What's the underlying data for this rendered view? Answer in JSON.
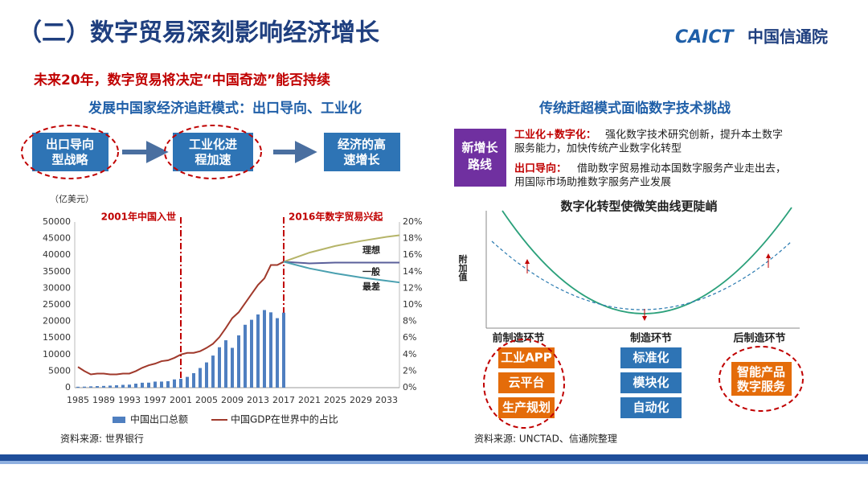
{
  "header": {
    "title": "（二）数字贸易深刻影响经济增长",
    "logo_en": "CAICT",
    "logo_cn": "中国信通院"
  },
  "headline": "未来20年，数字贸易将决定“中国奇迹”能否持续",
  "left": {
    "heading": "发展中国家经济追赶模式：出口导向、工业化",
    "flow": [
      [
        "出口导向",
        "型战略"
      ],
      [
        "工业化进",
        "程加速"
      ],
      [
        "经济的高",
        "速增长"
      ]
    ],
    "source": "资料来源: 世界银行"
  },
  "chart_data": {
    "type": "combo",
    "y_label": "（亿美元）",
    "x": [
      1985,
      1986,
      1987,
      1988,
      1989,
      1990,
      1991,
      1992,
      1993,
      1994,
      1995,
      1996,
      1997,
      1998,
      1999,
      2000,
      2001,
      2002,
      2003,
      2004,
      2005,
      2006,
      2007,
      2008,
      2009,
      2010,
      2011,
      2012,
      2013,
      2014,
      2015,
      2016,
      2017
    ],
    "xlim": [
      1984.5,
      2035
    ],
    "xticks": [
      1985,
      1989,
      1993,
      1997,
      2001,
      2005,
      2009,
      2013,
      2017,
      2021,
      2025,
      2029,
      2033
    ],
    "ylim": [
      0,
      50000
    ],
    "yticks": [
      0,
      5000,
      10000,
      15000,
      20000,
      25000,
      30000,
      35000,
      40000,
      45000,
      50000
    ],
    "y2lim": [
      0,
      20
    ],
    "y2ticks": [
      {
        "value": 0,
        "label": "0%"
      },
      {
        "value": 2,
        "label": "2%"
      },
      {
        "value": 4,
        "label": "4%"
      },
      {
        "value": 6,
        "label": "6%"
      },
      {
        "value": 8,
        "label": "8%"
      },
      {
        "value": 10,
        "label": "10%"
      },
      {
        "value": 12,
        "label": "12%"
      },
      {
        "value": 14,
        "label": "14%"
      },
      {
        "value": 16,
        "label": "16%"
      },
      {
        "value": 18,
        "label": "18%"
      },
      {
        "value": 20,
        "label": "20%"
      }
    ],
    "series": [
      {
        "name": "中国出口总额",
        "type": "bar",
        "color": "#4f7fc0",
        "values": [
          274,
          309,
          394,
          475,
          525,
          621,
          719,
          849,
          917,
          1210,
          1488,
          1511,
          1828,
          1837,
          1949,
          2492,
          2661,
          3256,
          4382,
          5933,
          7620,
          9689,
          12200,
          14307,
          12016,
          15778,
          18984,
          20487,
          22090,
          23423,
          22735,
          20976,
          22635
        ]
      },
      {
        "name": "中国GDP在世界中的占比",
        "type": "line",
        "axis": "y2",
        "color": "#a0392b",
        "values": [
          2.5,
          2.0,
          1.6,
          1.7,
          1.7,
          1.6,
          1.6,
          1.7,
          1.7,
          2.0,
          2.4,
          2.7,
          2.9,
          3.2,
          3.3,
          3.6,
          4.0,
          4.2,
          4.2,
          4.4,
          4.8,
          5.3,
          6.1,
          7.2,
          8.4,
          9.1,
          10.2,
          11.3,
          12.4,
          13.2,
          14.8,
          14.8,
          15.2
        ]
      },
      {
        "name": "理想",
        "type": "line",
        "axis": "y2",
        "in_legend": false,
        "color": "#b5b468",
        "x": [
          2017,
          2021,
          2025,
          2029,
          2033,
          2035
        ],
        "values": [
          15.2,
          16.3,
          17.1,
          17.7,
          18.2,
          18.4
        ]
      },
      {
        "name": "一般",
        "type": "line",
        "axis": "y2",
        "in_legend": false,
        "color": "#5a5f9a",
        "x": [
          2017,
          2021,
          2025,
          2029,
          2033,
          2035
        ],
        "values": [
          15.2,
          15.0,
          15.1,
          15.1,
          15.1,
          15.1
        ]
      },
      {
        "name": "最差",
        "type": "line",
        "axis": "y2",
        "in_legend": false,
        "color": "#4aa0b0",
        "x": [
          2017,
          2021,
          2025,
          2029,
          2033,
          2035
        ],
        "values": [
          15.2,
          14.4,
          13.8,
          13.3,
          12.9,
          12.7
        ]
      }
    ],
    "annotations": [
      {
        "x": 2001,
        "label": "2001年中国入世"
      },
      {
        "x": 2017,
        "label": "2016年数字贸易兴起"
      }
    ]
  },
  "right": {
    "heading": "传统赶超模式面临数字技术挑战",
    "route": [
      "新增长",
      "路线"
    ],
    "points": [
      {
        "lead": "工业化+数字化：",
        "lines": [
          "强化数字技术研究创新，提升本土数字",
          "服务能力，加快传统产业数字化转型"
        ]
      },
      {
        "lead": "出口导向：",
        "lines": [
          "借助数字贸易推动本国数字服务产业走出去，",
          "用国际市场助推数字服务产业发展"
        ]
      }
    ],
    "diagram": {
      "title": "数字化转型使微笑曲线更陡峭",
      "y_label": "附加值",
      "stages": [
        "前制造环节",
        "制造环节",
        "后制造环节"
      ],
      "stage_boxes": [
        [
          "工业APP",
          "云平台",
          "生产规划"
        ],
        [
          "标准化",
          "模块化",
          "自动化"
        ]
      ],
      "after_box": [
        "智能产品",
        "数字服务"
      ]
    },
    "source": "资料来源: UNCTAD、信通院整理"
  }
}
